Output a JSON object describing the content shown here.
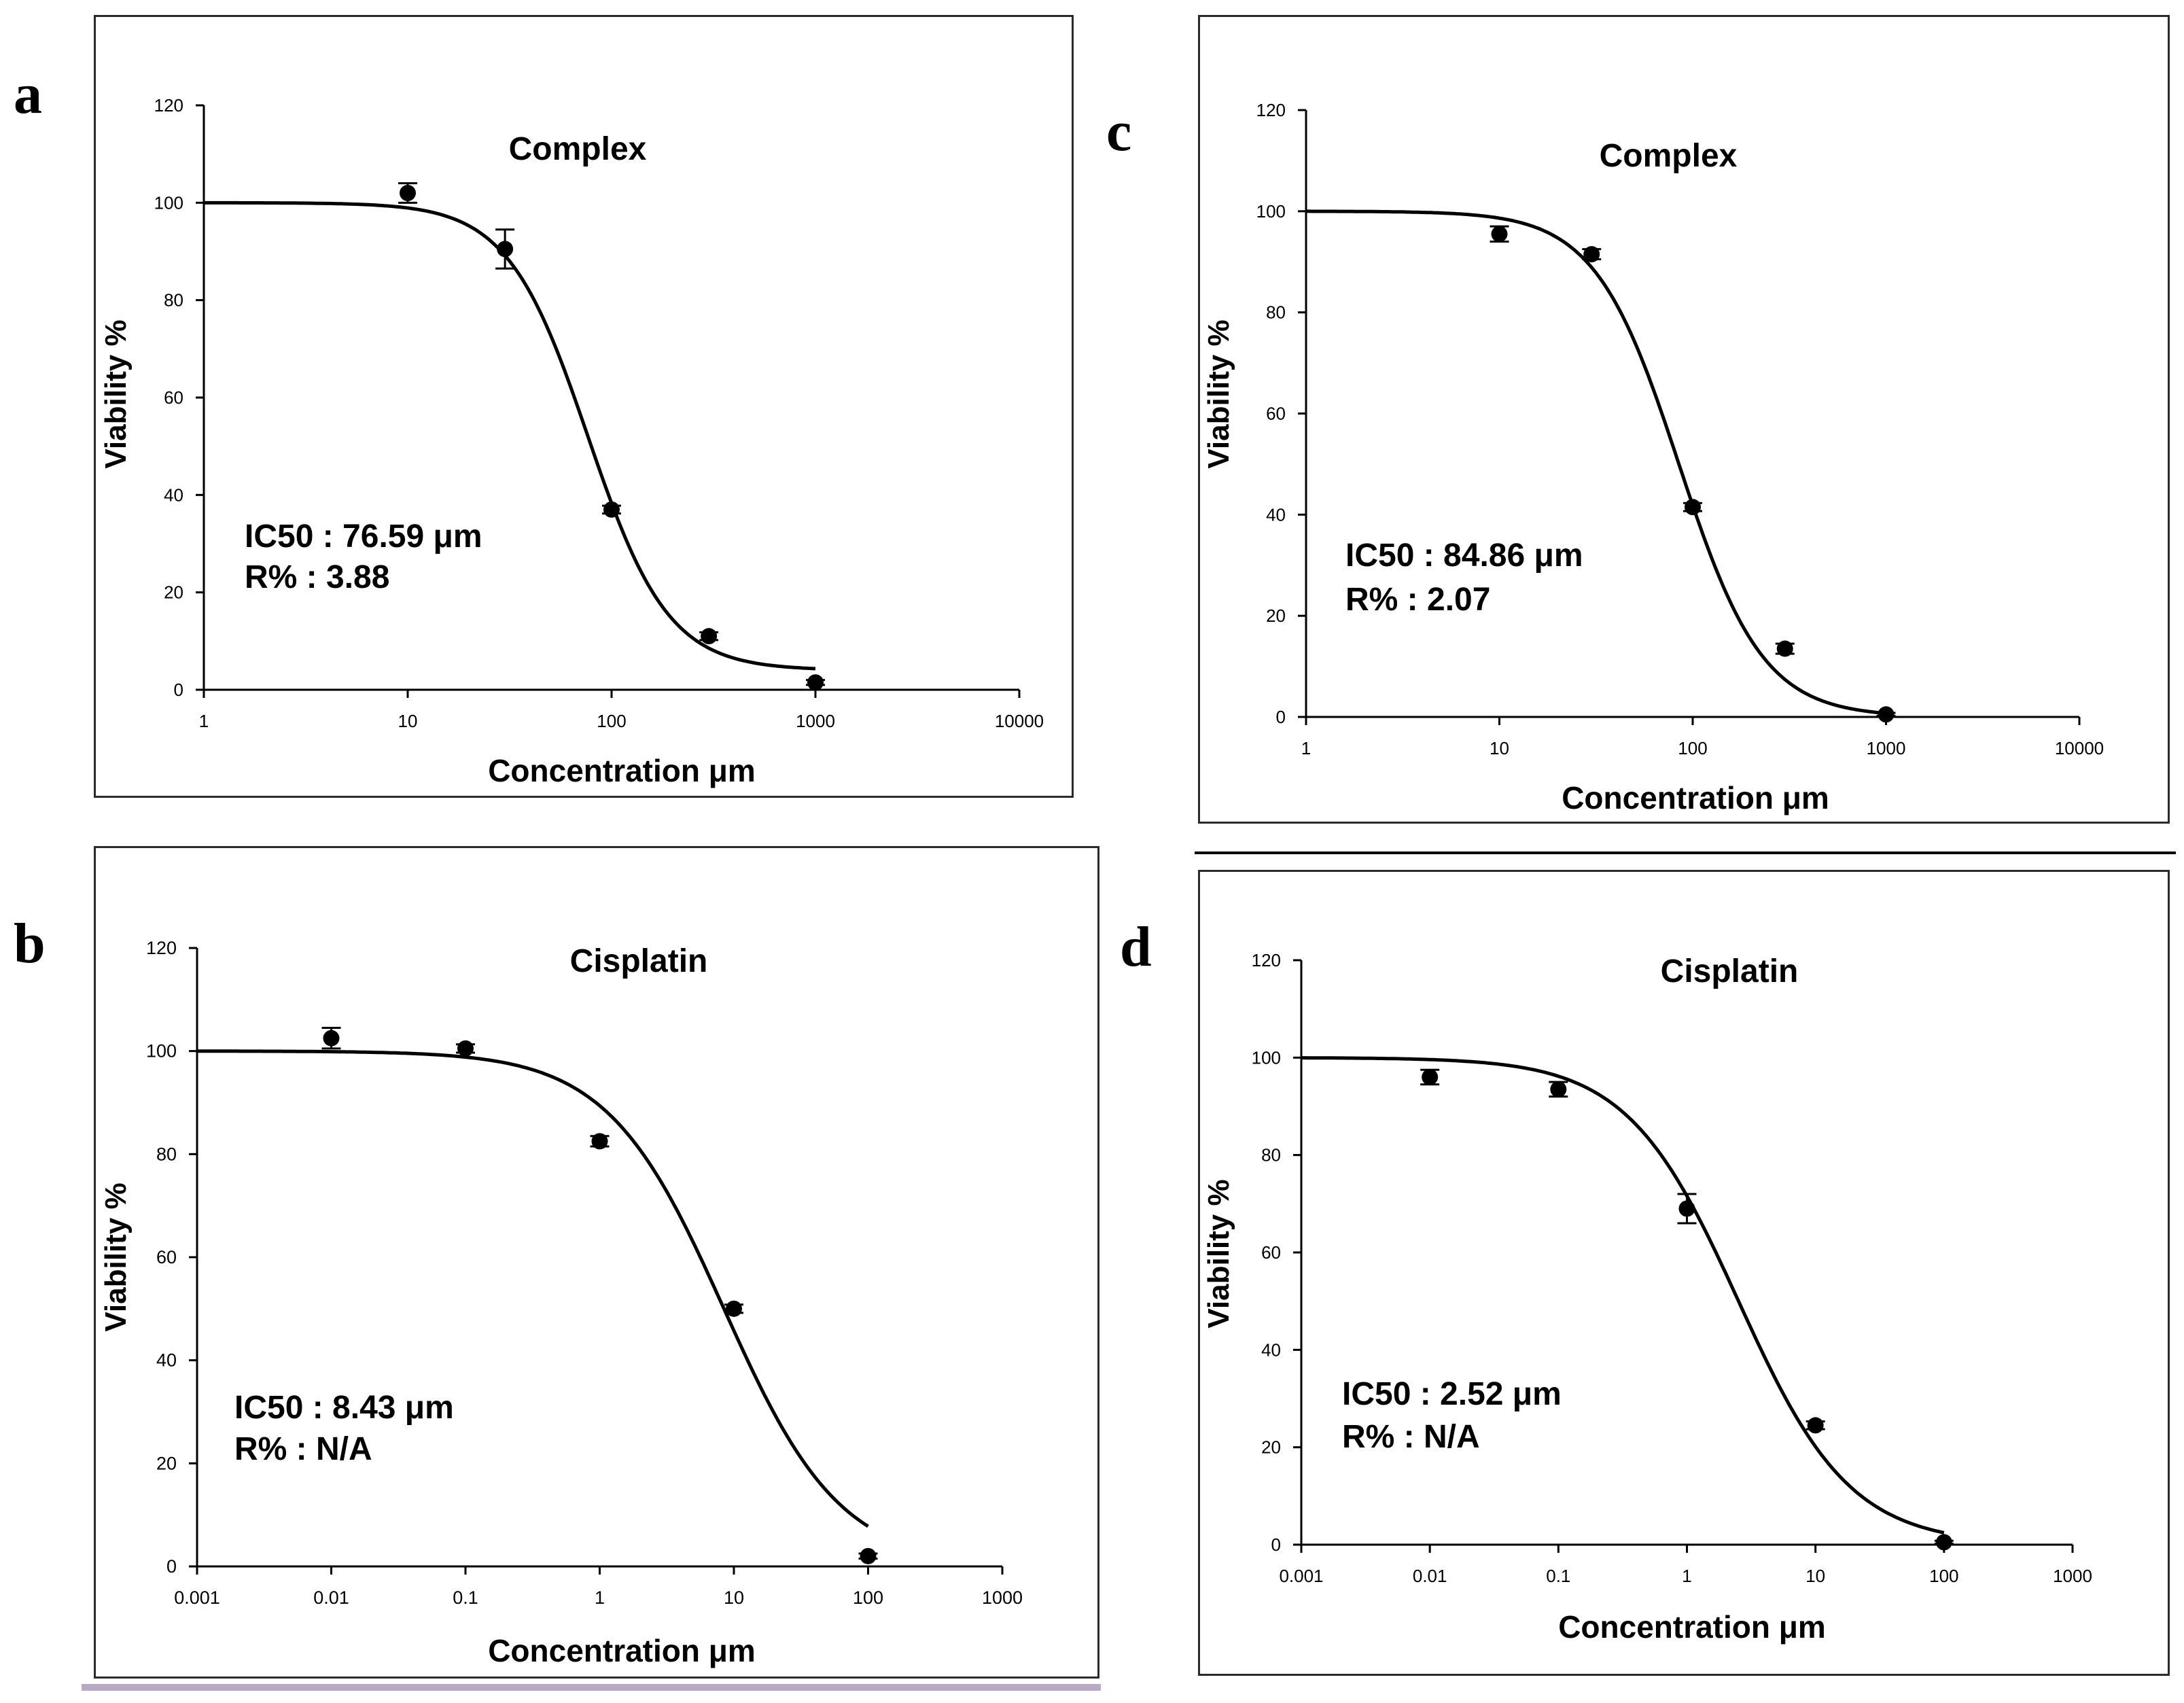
{
  "chart_data": [
    {
      "panel": "a",
      "type": "scatter",
      "title": "Complex",
      "xlabel": "Concentration μm",
      "ylabel": "Viability %",
      "xscale": "log",
      "xlim": [
        1,
        10000
      ],
      "ylim": [
        0,
        120
      ],
      "xticks": [
        "1",
        "10",
        "100",
        "1000",
        "10000"
      ],
      "yticks": [
        "0",
        "20",
        "40",
        "60",
        "80",
        "100",
        "120"
      ],
      "points": [
        {
          "x": 10,
          "y": 102,
          "err": 2
        },
        {
          "x": 30,
          "y": 90.5,
          "err": 4
        },
        {
          "x": 100,
          "y": 37,
          "err": 0.8
        },
        {
          "x": 300,
          "y": 11,
          "err": 0.8
        },
        {
          "x": 1000,
          "y": 1.5,
          "err": 0.5
        }
      ],
      "fit": {
        "top": 100,
        "bottom": 4,
        "ic50": 76.59,
        "hill": 2.2,
        "xrange": [
          1,
          1000
        ]
      },
      "annotation": [
        "IC50 : 76.59 μm",
        "R% : 3.88"
      ]
    },
    {
      "panel": "b",
      "type": "scatter",
      "title": "Cisplatin",
      "xlabel": "Concentration μm",
      "ylabel": "Viability %",
      "xscale": "log",
      "xlim": [
        0.001,
        1000
      ],
      "ylim": [
        0,
        120
      ],
      "xticks": [
        "0.001",
        "0.01",
        "0.1",
        "1",
        "10",
        "100",
        "1000"
      ],
      "yticks": [
        "0",
        "20",
        "40",
        "60",
        "80",
        "100",
        "120"
      ],
      "points": [
        {
          "x": 0.01,
          "y": 102.5,
          "err": 2
        },
        {
          "x": 0.1,
          "y": 100.5,
          "err": 0.8
        },
        {
          "x": 1,
          "y": 82.5,
          "err": 1
        },
        {
          "x": 10,
          "y": 50,
          "err": 0.8
        },
        {
          "x": 100,
          "y": 2,
          "err": 0.5
        }
      ],
      "fit": {
        "top": 100,
        "bottom": 0,
        "ic50": 8.43,
        "hill": 1.0,
        "xrange": [
          0.001,
          100
        ]
      },
      "annotation": [
        "IC50 : 8.43 μm",
        "R% : N/A"
      ]
    },
    {
      "panel": "c",
      "type": "scatter",
      "title": "Complex",
      "xlabel": "Concentration μm",
      "ylabel": "Viability %",
      "xscale": "log",
      "xlim": [
        1,
        10000
      ],
      "ylim": [
        0,
        120
      ],
      "xticks": [
        "1",
        "10",
        "100",
        "1000",
        "10000"
      ],
      "yticks": [
        "0",
        "20",
        "40",
        "60",
        "80",
        "100",
        "120"
      ],
      "points": [
        {
          "x": 10,
          "y": 95.5,
          "err": 1.5
        },
        {
          "x": 30,
          "y": 91.5,
          "err": 1
        },
        {
          "x": 100,
          "y": 41.5,
          "err": 0.8
        },
        {
          "x": 300,
          "y": 13.5,
          "err": 1
        },
        {
          "x": 1000,
          "y": 0.5,
          "err": 0.3
        }
      ],
      "fit": {
        "top": 100,
        "bottom": 0,
        "ic50": 84.86,
        "hill": 2.0,
        "xrange": [
          1,
          1000
        ]
      },
      "annotation": [
        "IC50 : 84.86 μm",
        "R% : 2.07"
      ]
    },
    {
      "panel": "d",
      "type": "scatter",
      "title": "Cisplatin",
      "xlabel": "Concentration μm",
      "ylabel": "Viability %",
      "xscale": "log",
      "xlim": [
        0.001,
        1000
      ],
      "ylim": [
        0,
        120
      ],
      "xticks": [
        "0.001",
        "0.01",
        "0.1",
        "1",
        "10",
        "100",
        "1000"
      ],
      "yticks": [
        "0",
        "20",
        "40",
        "60",
        "80",
        "100",
        "120"
      ],
      "points": [
        {
          "x": 0.01,
          "y": 96,
          "err": 1.5
        },
        {
          "x": 0.1,
          "y": 93.5,
          "err": 1.5
        },
        {
          "x": 1,
          "y": 69,
          "err": 3
        },
        {
          "x": 10,
          "y": 24.5,
          "err": 0.8
        },
        {
          "x": 100,
          "y": 0.5,
          "err": 0.3
        }
      ],
      "fit": {
        "top": 100,
        "bottom": 0,
        "ic50": 2.52,
        "hill": 1.0,
        "xrange": [
          0.001,
          100
        ]
      },
      "annotation": [
        "IC50 : 2.52 μm",
        "R% : N/A"
      ]
    }
  ]
}
